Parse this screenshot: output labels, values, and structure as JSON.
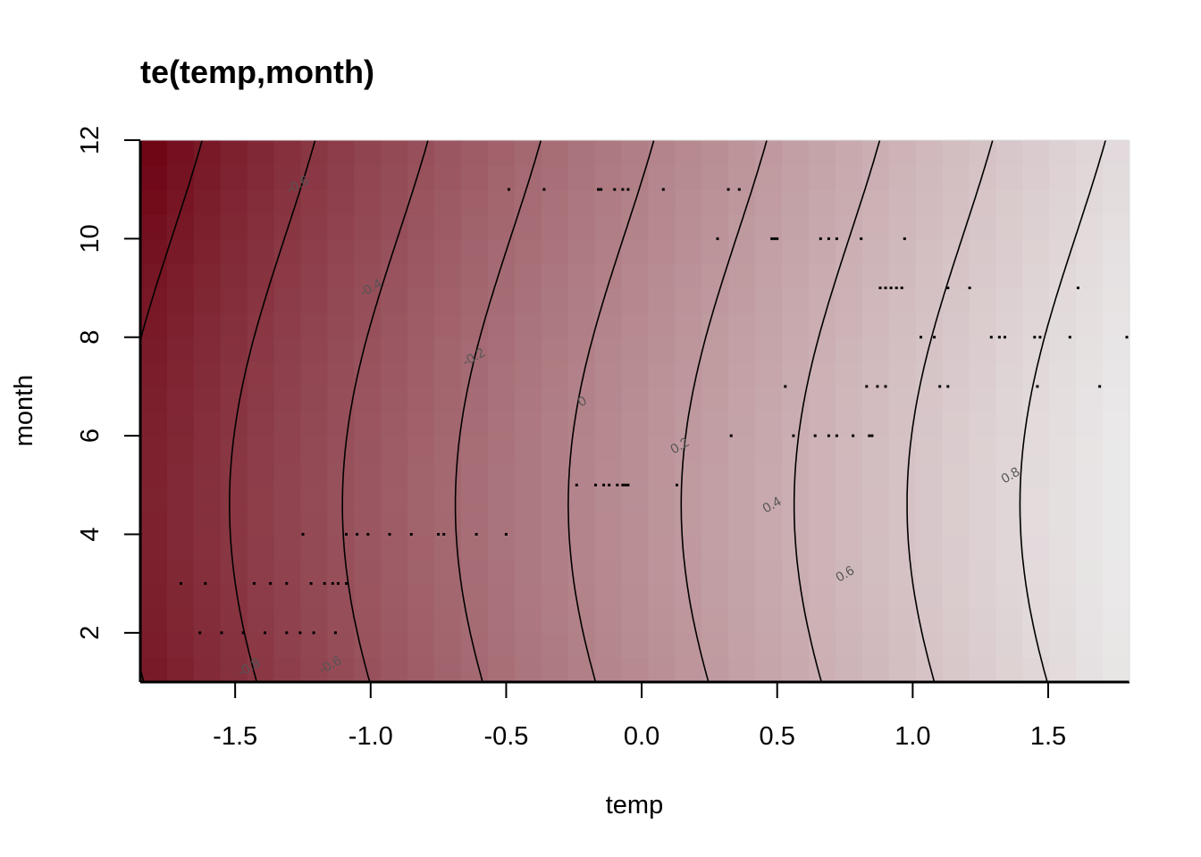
{
  "chart_data": {
    "type": "heatmap",
    "title": "te(temp,month)",
    "xlabel": "temp",
    "ylabel": "month",
    "xlim": [
      -1.85,
      1.8
    ],
    "ylim": [
      1,
      12
    ],
    "x_ticks": [
      -1.5,
      -1.0,
      -0.5,
      0.0,
      0.5,
      1.0,
      1.5
    ],
    "x_tick_labels": [
      "-1.5",
      "-1.0",
      "-0.5",
      "0.0",
      "0.5",
      "1.0",
      "1.5"
    ],
    "y_ticks": [
      2,
      4,
      6,
      8,
      10,
      12
    ],
    "y_tick_labels": [
      "2",
      "4",
      "6",
      "8",
      "10",
      "12"
    ],
    "contour_levels": [
      -0.8,
      -0.6,
      -0.4,
      -0.2,
      0,
      0.2,
      0.4,
      0.6,
      0.8
    ],
    "contour_labels": [
      {
        "text": "-0.8",
        "x": -1.45,
        "y": 1.3
      },
      {
        "text": "-0.6",
        "x": -1.15,
        "y": 1.35
      },
      {
        "text": "-0.6",
        "x": -1.27,
        "y": 11.1
      },
      {
        "text": "-0.4",
        "x": -1.0,
        "y": 9.0
      },
      {
        "text": "-0.2",
        "x": -0.62,
        "y": 7.6
      },
      {
        "text": "0",
        "x": -0.22,
        "y": 6.7
      },
      {
        "text": "0.2",
        "x": 0.14,
        "y": 5.8
      },
      {
        "text": "0.4",
        "x": 0.48,
        "y": 4.6
      },
      {
        "text": "0.6",
        "x": 0.75,
        "y": 3.2
      },
      {
        "text": "0.8",
        "x": 1.36,
        "y": 5.2
      }
    ],
    "color_scale": {
      "low": "#6b0010",
      "high": "#ececec",
      "min": -0.9,
      "max": 1.0
    },
    "data_rug": [
      {
        "month": 11,
        "temps": [
          -0.49,
          -0.36,
          -0.16,
          -0.15,
          -0.1,
          -0.07,
          -0.05,
          0.08,
          0.32,
          0.36
        ]
      },
      {
        "month": 10,
        "temps": [
          0.28,
          0.48,
          0.49,
          0.5,
          0.66,
          0.69,
          0.72,
          0.81,
          0.97
        ]
      },
      {
        "month": 9,
        "temps": [
          0.88,
          0.9,
          0.92,
          0.94,
          0.96,
          1.13,
          1.21,
          1.61
        ]
      },
      {
        "month": 8,
        "temps": [
          1.03,
          1.08,
          1.29,
          1.32,
          1.34,
          1.45,
          1.47,
          1.58,
          1.79
        ]
      },
      {
        "month": 7,
        "temps": [
          0.53,
          0.83,
          0.87,
          0.9,
          1.1,
          1.13,
          1.46,
          1.69
        ]
      },
      {
        "month": 6,
        "temps": [
          0.33,
          0.56,
          0.64,
          0.69,
          0.72,
          0.78,
          0.84,
          0.85
        ]
      },
      {
        "month": 5,
        "temps": [
          -0.24,
          -0.17,
          -0.14,
          -0.12,
          -0.09,
          -0.07,
          -0.06,
          -0.05,
          0.13
        ]
      },
      {
        "month": 4,
        "temps": [
          -1.25,
          -1.09,
          -1.05,
          -1.01,
          -0.93,
          -0.85,
          -0.75,
          -0.73,
          -0.61,
          -0.5
        ]
      },
      {
        "month": 3,
        "temps": [
          -1.7,
          -1.61,
          -1.43,
          -1.37,
          -1.31,
          -1.22,
          -1.17,
          -1.14,
          -1.12,
          -1.09
        ]
      },
      {
        "month": 2,
        "temps": [
          -1.63,
          -1.55,
          -1.47,
          -1.39,
          -1.31,
          -1.26,
          -1.21,
          -1.13
        ]
      }
    ]
  }
}
